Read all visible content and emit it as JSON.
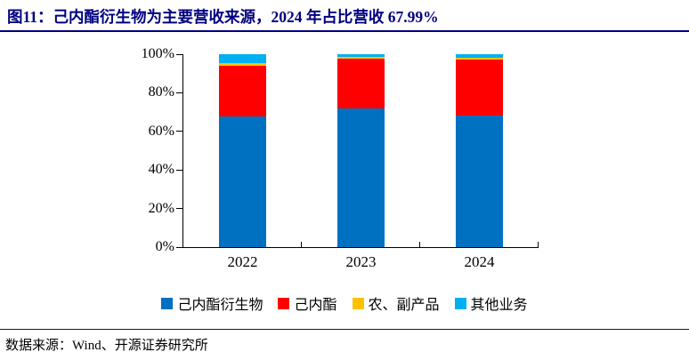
{
  "title": {
    "text": "图11：己内酯衍生物为主要营收来源，2024 年占比营收 67.99%"
  },
  "source": {
    "text": "数据来源：Wind、开源证券研究所"
  },
  "colors": {
    "title": "#000080",
    "title_rule": "#000080",
    "axis": "#000000",
    "source_rule": "#1a1a1a"
  },
  "chart_data": {
    "type": "bar",
    "stacked": true,
    "stacked_to_100_percent": true,
    "title": "",
    "xlabel": "",
    "ylabel": "",
    "categories": [
      "2022",
      "2023",
      "2024"
    ],
    "series": [
      {
        "name": "己内酯衍生物",
        "color": "#0070C0",
        "values": [
          67.7,
          72.0,
          67.99
        ]
      },
      {
        "name": "己内酯",
        "color": "#FF0000",
        "values": [
          26.4,
          25.6,
          29.2
        ]
      },
      {
        "name": "农、副产品",
        "color": "#FFC000",
        "values": [
          1.4,
          1.2,
          1.1
        ]
      },
      {
        "name": "其他业务",
        "color": "#00B0F0",
        "values": [
          4.5,
          1.2,
          1.7
        ]
      }
    ],
    "y_ticks": [
      "0%",
      "20%",
      "40%",
      "60%",
      "80%",
      "100%"
    ],
    "ylim": [
      0,
      100
    ],
    "grid": false,
    "legend_position": "bottom"
  }
}
